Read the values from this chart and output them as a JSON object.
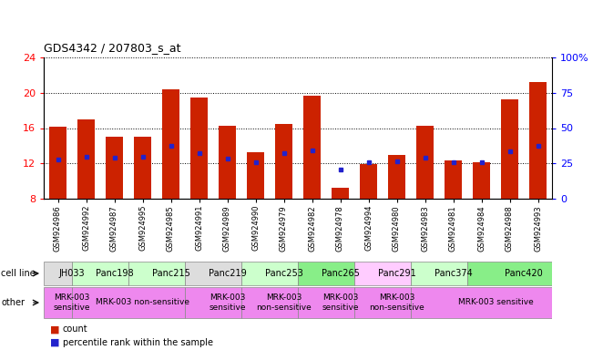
{
  "title": "GDS4342 / 207803_s_at",
  "samples": [
    "GSM924986",
    "GSM924992",
    "GSM924987",
    "GSM924995",
    "GSM924985",
    "GSM924991",
    "GSM924989",
    "GSM924990",
    "GSM924979",
    "GSM924982",
    "GSM924978",
    "GSM924994",
    "GSM924980",
    "GSM924983",
    "GSM924981",
    "GSM924984",
    "GSM924988",
    "GSM924993"
  ],
  "bar_heights": [
    16.2,
    17.0,
    15.0,
    15.0,
    20.4,
    19.5,
    16.3,
    13.3,
    16.5,
    19.7,
    9.2,
    11.9,
    13.0,
    16.3,
    12.3,
    12.1,
    19.3,
    21.2
  ],
  "blue_markers": [
    12.4,
    12.7,
    12.6,
    12.7,
    14.0,
    13.2,
    12.5,
    12.1,
    13.2,
    13.5,
    11.3,
    12.1,
    12.2,
    12.6,
    12.1,
    12.1,
    13.4,
    14.0
  ],
  "ymin": 8,
  "ymax": 24,
  "yticks_left": [
    8,
    12,
    16,
    20,
    24
  ],
  "yticks_right": [
    0,
    25,
    50,
    75,
    100
  ],
  "bar_color": "#cc2200",
  "blue_color": "#2222cc",
  "cell_lines": [
    {
      "label": "JH033",
      "start": 0,
      "end": 1,
      "color": "#dddddd"
    },
    {
      "label": "Panc198",
      "start": 1,
      "end": 3,
      "color": "#ccffcc"
    },
    {
      "label": "Panc215",
      "start": 3,
      "end": 5,
      "color": "#ccffcc"
    },
    {
      "label": "Panc219",
      "start": 5,
      "end": 7,
      "color": "#dddddd"
    },
    {
      "label": "Panc253",
      "start": 7,
      "end": 9,
      "color": "#ccffcc"
    },
    {
      "label": "Panc265",
      "start": 9,
      "end": 11,
      "color": "#88ee88"
    },
    {
      "label": "Panc291",
      "start": 11,
      "end": 13,
      "color": "#ffccff"
    },
    {
      "label": "Panc374",
      "start": 13,
      "end": 15,
      "color": "#ccffcc"
    },
    {
      "label": "Panc420",
      "start": 15,
      "end": 18,
      "color": "#88ee88"
    }
  ],
  "other_labels": [
    {
      "label": "MRK-003\nsensitive",
      "start": 0,
      "end": 1,
      "color": "#ee88ee"
    },
    {
      "label": "MRK-003 non-sensitive",
      "start": 1,
      "end": 5,
      "color": "#ee88ee"
    },
    {
      "label": "MRK-003\nsensitive",
      "start": 5,
      "end": 7,
      "color": "#ee88ee"
    },
    {
      "label": "MRK-003\nnon-sensitive",
      "start": 7,
      "end": 9,
      "color": "#ee88ee"
    },
    {
      "label": "MRK-003\nsensitive",
      "start": 9,
      "end": 11,
      "color": "#ee88ee"
    },
    {
      "label": "MRK-003\nnon-sensitive",
      "start": 11,
      "end": 13,
      "color": "#ee88ee"
    },
    {
      "label": "MRK-003 sensitive",
      "start": 13,
      "end": 18,
      "color": "#ee88ee"
    }
  ],
  "legend_count_color": "#cc2200",
  "legend_marker_color": "#2222cc",
  "bg_color": "#ffffff"
}
